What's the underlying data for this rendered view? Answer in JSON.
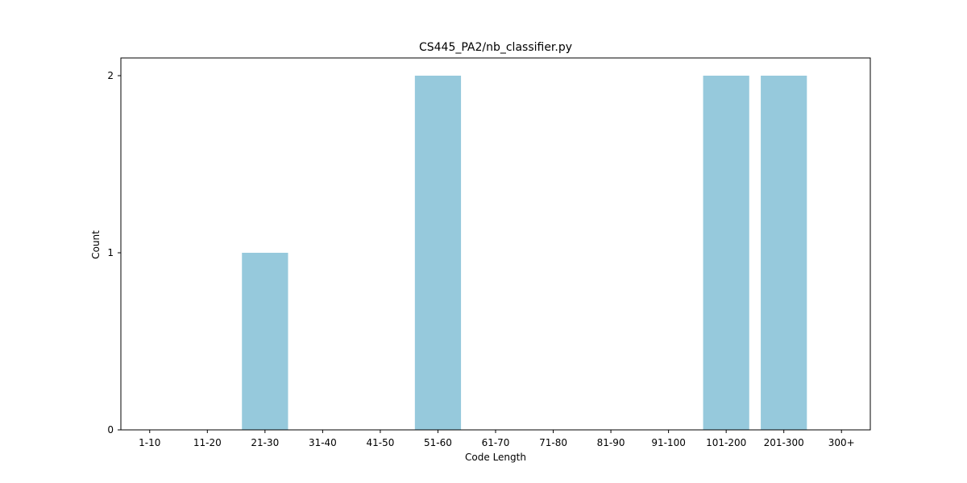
{
  "chart_data": {
    "type": "bar",
    "title": "CS445_PA2/nb_classifier.py",
    "xlabel": "Code Length",
    "ylabel": "Count",
    "categories": [
      "1-10",
      "11-20",
      "21-30",
      "31-40",
      "41-50",
      "51-60",
      "61-70",
      "71-80",
      "81-90",
      "91-100",
      "101-200",
      "201-300",
      "300+"
    ],
    "values": [
      0,
      0,
      1,
      0,
      0,
      2,
      0,
      0,
      0,
      0,
      2,
      2,
      0
    ],
    "ylim": [
      0,
      2.1
    ],
    "yticks": [
      0,
      1,
      2
    ],
    "bar_color": "#96c9dc",
    "grid": false,
    "legend": "none"
  }
}
